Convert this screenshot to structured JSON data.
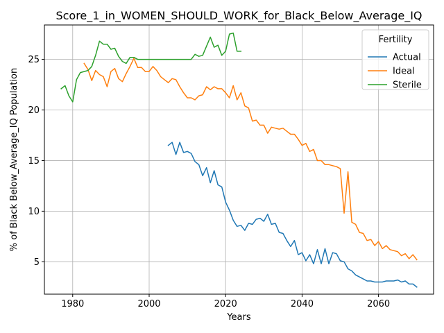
{
  "chart_data": {
    "type": "line",
    "title": "Score_1_in_WOMEN_SHOULD_WORK_for_Black_Below_Average_IQ",
    "xlabel": "Years",
    "ylabel": "% of Black Below_Average_IQ Population",
    "xlim": [
      1972.6,
      2074.4
    ],
    "ylim": [
      1.8,
      28.4
    ],
    "xticks": [
      1980,
      2000,
      2020,
      2040,
      2060
    ],
    "yticks": [
      5,
      10,
      15,
      20,
      25
    ],
    "grid": true,
    "legend": {
      "title": "Fertility",
      "placement": "top-right"
    },
    "series": [
      {
        "name": "Actual",
        "color": "#1f77b4",
        "x": [
          2005,
          2006,
          2007,
          2008,
          2009,
          2010,
          2011,
          2012,
          2013,
          2014,
          2015,
          2016,
          2017,
          2018,
          2019,
          2020,
          2021,
          2022,
          2023,
          2024,
          2025,
          2026,
          2027,
          2028,
          2029,
          2030,
          2031,
          2032,
          2033,
          2034,
          2035,
          2036,
          2037,
          2038,
          2039,
          2040,
          2041,
          2042,
          2043,
          2044,
          2045,
          2046,
          2047,
          2048,
          2049,
          2050,
          2051,
          2052,
          2053,
          2054,
          2055,
          2056,
          2057,
          2058,
          2059,
          2060,
          2061,
          2062,
          2063,
          2064,
          2065,
          2066,
          2067,
          2068,
          2069,
          2070
        ],
        "y": [
          16.5,
          16.8,
          15.6,
          16.8,
          15.8,
          15.9,
          15.7,
          14.9,
          14.6,
          13.5,
          14.3,
          12.8,
          14.0,
          12.6,
          12.4,
          10.9,
          10.1,
          9.1,
          8.5,
          8.6,
          8.1,
          8.8,
          8.7,
          9.2,
          9.3,
          9.0,
          9.7,
          8.7,
          8.8,
          7.9,
          7.8,
          7.1,
          6.5,
          7.1,
          5.7,
          5.9,
          5.1,
          5.7,
          4.8,
          6.2,
          4.8,
          6.3,
          4.8,
          5.9,
          5.8,
          5.1,
          5.0,
          4.3,
          4.1,
          3.7,
          3.5,
          3.3,
          3.1,
          3.1,
          3.0,
          3.0,
          3.0,
          3.1,
          3.1,
          3.1,
          3.2,
          3.0,
          3.1,
          2.8,
          2.8,
          2.5
        ]
      },
      {
        "name": "Ideal",
        "color": "#ff7f0e",
        "x": [
          1983,
          1984,
          1985,
          1986,
          1987,
          1988,
          1989,
          1990,
          1991,
          1992,
          1993,
          1994,
          1995,
          1996,
          1997,
          1998,
          1999,
          2000,
          2001,
          2002,
          2003,
          2004,
          2005,
          2006,
          2007,
          2008,
          2009,
          2010,
          2011,
          2012,
          2013,
          2014,
          2015,
          2016,
          2017,
          2018,
          2019,
          2020,
          2021,
          2022,
          2023,
          2024,
          2025,
          2026,
          2027,
          2028,
          2029,
          2030,
          2031,
          2032,
          2033,
          2034,
          2035,
          2036,
          2037,
          2038,
          2039,
          2040,
          2041,
          2042,
          2043,
          2044,
          2045,
          2046,
          2047,
          2048,
          2049,
          2050,
          2051,
          2052,
          2053,
          2054,
          2055,
          2056,
          2057,
          2058,
          2059,
          2060,
          2061,
          2062,
          2063,
          2064,
          2065,
          2066,
          2067,
          2068,
          2069,
          2070
        ],
        "y": [
          24.6,
          24.0,
          22.9,
          23.9,
          23.5,
          23.3,
          22.3,
          23.8,
          24.1,
          23.1,
          22.8,
          23.6,
          24.3,
          25.1,
          24.2,
          24.2,
          23.8,
          23.8,
          24.3,
          23.9,
          23.3,
          23.0,
          22.7,
          23.1,
          23.0,
          22.3,
          21.7,
          21.2,
          21.2,
          21.0,
          21.4,
          21.5,
          22.3,
          22.0,
          22.3,
          22.1,
          22.1,
          21.7,
          21.2,
          22.4,
          21.0,
          21.7,
          20.4,
          20.2,
          18.9,
          19.0,
          18.5,
          18.5,
          17.7,
          18.3,
          18.2,
          18.1,
          18.2,
          17.9,
          17.6,
          17.6,
          17.1,
          16.5,
          16.7,
          15.9,
          16.1,
          15.0,
          15.0,
          14.6,
          14.6,
          14.5,
          14.4,
          14.2,
          9.8,
          13.9,
          8.9,
          8.7,
          7.9,
          7.8,
          7.1,
          7.2,
          6.6,
          7.0,
          6.3,
          6.6,
          6.2,
          6.1,
          6.0,
          5.6,
          5.8,
          5.3,
          5.7,
          5.2
        ]
      },
      {
        "name": "Sterile",
        "color": "#2ca02c",
        "x": [
          1977,
          1978,
          1979,
          1980,
          1981,
          1982,
          1983,
          1984,
          1985,
          1986,
          1987,
          1988,
          1989,
          1990,
          1991,
          1992,
          1993,
          1994,
          1995,
          1996,
          1997,
          1998,
          1999,
          2000,
          2001,
          2002,
          2003,
          2004,
          2005,
          2006,
          2007,
          2008,
          2009,
          2010,
          2011,
          2012,
          2013,
          2014,
          2015,
          2016,
          2017,
          2018,
          2019,
          2020,
          2021,
          2022,
          2023,
          2024
        ],
        "y": [
          22.1,
          22.4,
          21.4,
          20.8,
          23.0,
          23.7,
          23.8,
          23.9,
          24.3,
          25.4,
          26.8,
          26.5,
          26.5,
          26.0,
          26.1,
          25.3,
          24.8,
          24.6,
          25.2,
          25.2,
          25.0,
          25.0,
          25.0,
          25.0,
          25.0,
          25.0,
          25.0,
          25.0,
          25.0,
          25.0,
          25.0,
          25.0,
          25.0,
          25.0,
          25.0,
          25.5,
          25.3,
          25.4,
          26.3,
          27.2,
          26.2,
          26.4,
          25.4,
          25.8,
          27.5,
          27.6,
          25.8,
          25.8
        ]
      }
    ]
  }
}
